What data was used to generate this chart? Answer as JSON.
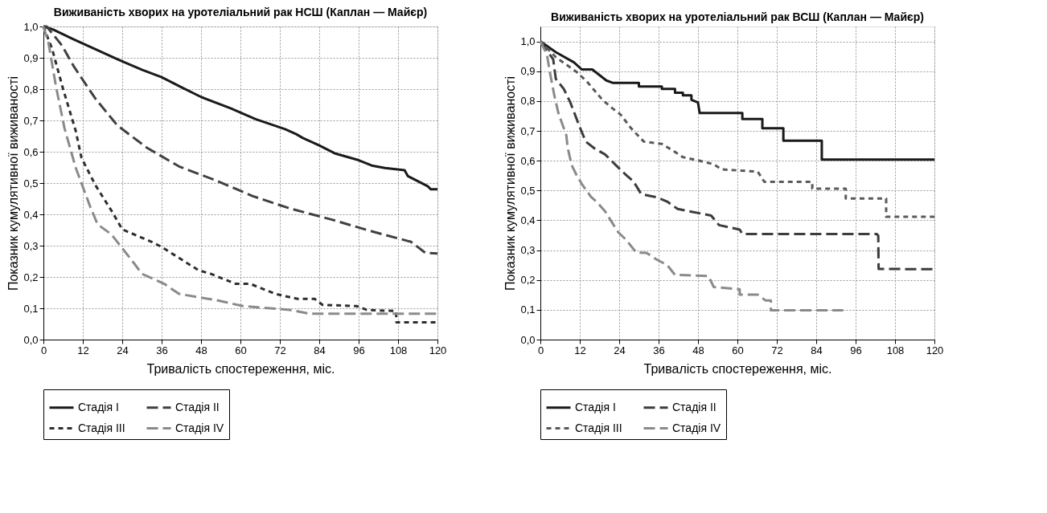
{
  "chart_data": [
    {
      "type": "line",
      "title": "Виживаність хворих на уротеліальний рак НСШ (Каплан — Майєр)",
      "xlabel": "Тривалість спостереження, міс.",
      "ylabel": "Показник кумулятивної виживаності",
      "xlim": [
        0,
        120
      ],
      "xticks": [
        0,
        12,
        24,
        36,
        48,
        60,
        72,
        84,
        96,
        108,
        120
      ],
      "ylim": [
        0,
        1
      ],
      "yticks": [
        {
          "value": 0,
          "label": "0,0"
        },
        {
          "value": 0.1,
          "label": "0,1"
        },
        {
          "value": 0.2,
          "label": "0,2"
        },
        {
          "value": 0.3,
          "label": "0,3"
        },
        {
          "value": 0.4,
          "label": "0,4"
        },
        {
          "value": 0.5,
          "label": "0,5"
        },
        {
          "value": 0.6,
          "label": "0,6"
        },
        {
          "value": 0.7,
          "label": "0,7"
        },
        {
          "value": 0.8,
          "label": "0,8"
        },
        {
          "value": 0.9,
          "label": "0,9"
        },
        {
          "value": 1,
          "label": "1,0"
        }
      ],
      "grid": true,
      "legend": "bottom left",
      "series": [
        {
          "name": "Стадія I",
          "color": "#1a1a1a",
          "line_style": "solid",
          "x": [
            0,
            3,
            9,
            23,
            30,
            36,
            42,
            48,
            57,
            64.6,
            73.6,
            77,
            79,
            84,
            88.7,
            96,
            100,
            104,
            110,
            111,
            114,
            117,
            118,
            120
          ],
          "values": [
            1.0,
            0.99,
            0.96,
            0.893,
            0.862,
            0.838,
            0.806,
            0.775,
            0.739,
            0.704,
            0.672,
            0.656,
            0.644,
            0.62,
            0.595,
            0.573,
            0.556,
            0.548,
            0.541,
            0.522,
            0.506,
            0.49,
            0.48,
            0.48
          ]
        },
        {
          "name": "Стадія II",
          "color": "#404040",
          "line_style": "dashed",
          "x": [
            0,
            1,
            5.6,
            9.4,
            15.8,
            22.5,
            31.5,
            41.3,
            52.6,
            63.8,
            75,
            87.9,
            99.2,
            112,
            116.3,
            120
          ],
          "values": [
            1.0,
            1.0,
            0.94,
            0.87,
            0.77,
            0.684,
            0.613,
            0.553,
            0.508,
            0.458,
            0.419,
            0.383,
            0.348,
            0.312,
            0.277,
            0.275
          ]
        },
        {
          "name": "Стадія III",
          "color": "#2e2e2e",
          "line_style": "dotted",
          "x": [
            0,
            2.6,
            6,
            9.8,
            11.6,
            15.8,
            21,
            24,
            33,
            36,
            47.3,
            51,
            58.6,
            63,
            70.6,
            77.4,
            82.6,
            85,
            95.4,
            98.4,
            107.4,
            107.5,
            120
          ],
          "values": [
            1.0,
            0.93,
            0.8,
            0.668,
            0.58,
            0.494,
            0.407,
            0.352,
            0.312,
            0.296,
            0.221,
            0.21,
            0.178,
            0.178,
            0.146,
            0.13,
            0.13,
            0.111,
            0.107,
            0.095,
            0.091,
            0.055,
            0.055
          ]
        },
        {
          "name": "Стадія IV",
          "color": "#8a8a8a",
          "line_style": "dashed",
          "x": [
            0,
            1.5,
            3.8,
            6.4,
            9.8,
            14.3,
            16.5,
            20.7,
            27.8,
            30,
            36.8,
            41.3,
            48,
            52.6,
            60.8,
            75,
            81,
            120
          ],
          "values": [
            1.0,
            0.95,
            0.81,
            0.676,
            0.55,
            0.423,
            0.368,
            0.336,
            0.241,
            0.21,
            0.178,
            0.146,
            0.134,
            0.126,
            0.107,
            0.095,
            0.083,
            0.083
          ]
        }
      ]
    },
    {
      "type": "line",
      "title": "Виживаність хворих на уротеліальний рак ВСШ (Каплан — Майєр)",
      "xlabel": "Тривалість спостереження, міс.",
      "ylabel": "Показник кумулятивної виживаності",
      "xlim": [
        0,
        120
      ],
      "xticks": [
        0,
        12,
        24,
        36,
        48,
        60,
        72,
        84,
        96,
        108,
        120
      ],
      "ylim": [
        0,
        1.05
      ],
      "yticks": [
        {
          "value": 0,
          "label": "0,0"
        },
        {
          "value": 0.1,
          "label": "0,1"
        },
        {
          "value": 0.2,
          "label": "0,2"
        },
        {
          "value": 0.3,
          "label": "0,3"
        },
        {
          "value": 0.4,
          "label": "0,4"
        },
        {
          "value": 0.5,
          "label": "0,5"
        },
        {
          "value": 0.6,
          "label": "0,6"
        },
        {
          "value": 0.7,
          "label": "0,7"
        },
        {
          "value": 0.8,
          "label": "0,8"
        },
        {
          "value": 0.9,
          "label": "0,9"
        },
        {
          "value": 1,
          "label": "1,0"
        }
      ],
      "grid": true,
      "legend": "bottom left",
      "series": [
        {
          "name": "Стадія I",
          "color": "#1a1a1a",
          "line_style": "solid",
          "x": [
            0,
            4.7,
            10.2,
            12.6,
            15.8,
            20.1,
            22,
            30,
            30,
            37,
            37,
            41,
            41,
            43.4,
            43.4,
            46,
            46,
            48,
            48.5,
            61.5,
            61.5,
            67.6,
            67.6,
            74,
            74,
            85.7,
            85.7,
            120
          ],
          "values": [
            1.0,
            0.964,
            0.93,
            0.906,
            0.906,
            0.869,
            0.861,
            0.861,
            0.849,
            0.849,
            0.841,
            0.841,
            0.828,
            0.828,
            0.819,
            0.819,
            0.804,
            0.795,
            0.76,
            0.76,
            0.74,
            0.74,
            0.709,
            0.709,
            0.667,
            0.667,
            0.604,
            0.604
          ]
        },
        {
          "name": "Стадія II",
          "color": "#3c3c3c",
          "line_style": "dashed",
          "x": [
            0,
            3.9,
            4.7,
            7.1,
            9.1,
            11.8,
            13.8,
            16.6,
            19.7,
            22.9,
            26,
            28.4,
            30.7,
            35.5,
            38.6,
            41.8,
            52,
            54.4,
            60.7,
            61.5,
            102.5,
            102.9,
            103,
            120
          ],
          "values": [
            1.0,
            0.94,
            0.874,
            0.841,
            0.796,
            0.718,
            0.664,
            0.64,
            0.621,
            0.586,
            0.553,
            0.53,
            0.488,
            0.477,
            0.463,
            0.438,
            0.416,
            0.384,
            0.369,
            0.354,
            0.354,
            0.348,
            0.237,
            0.236
          ]
        },
        {
          "name": "Стадія III",
          "color": "#5a5a5a",
          "line_style": "dotted",
          "x": [
            0,
            4.7,
            11,
            14.2,
            18.9,
            22,
            24.4,
            27.6,
            31.5,
            37,
            40.2,
            43.4,
            48,
            52.8,
            55.2,
            66.2,
            68.2,
            82.8,
            82.8,
            93,
            93,
            105.3,
            105.3,
            120
          ],
          "values": [
            1.0,
            0.947,
            0.898,
            0.865,
            0.804,
            0.775,
            0.755,
            0.709,
            0.664,
            0.656,
            0.635,
            0.612,
            0.601,
            0.588,
            0.571,
            0.563,
            0.529,
            0.529,
            0.506,
            0.506,
            0.473,
            0.473,
            0.412,
            0.412
          ]
        },
        {
          "name": "Стадія IV",
          "color": "#8a8a8a",
          "line_style": "dashed",
          "x": [
            0,
            2,
            2.8,
            4.3,
            5.5,
            7.9,
            8.3,
            9.5,
            11,
            12.6,
            15.4,
            17.4,
            19.7,
            23.7,
            26,
            29.2,
            32.3,
            35.5,
            38.6,
            41,
            51.2,
            52.8,
            60.7,
            60.7,
            66.2,
            68.6,
            70.2,
            70.2,
            92.2
          ],
          "values": [
            1.0,
            0.956,
            0.902,
            0.816,
            0.759,
            0.685,
            0.644,
            0.586,
            0.552,
            0.522,
            0.479,
            0.459,
            0.43,
            0.36,
            0.336,
            0.292,
            0.291,
            0.268,
            0.25,
            0.217,
            0.213,
            0.176,
            0.169,
            0.151,
            0.151,
            0.131,
            0.131,
            0.098,
            0.098
          ]
        }
      ]
    }
  ]
}
